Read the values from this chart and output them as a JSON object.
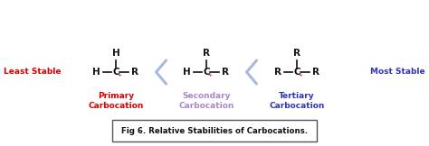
{
  "bg_color": "#ffffff",
  "least_stable_text": "Least Stable",
  "most_stable_text": "Most Stable",
  "least_stable_color": "#dd0000",
  "most_stable_color": "#3333bb",
  "primary_label": "Primary\nCarbocation",
  "secondary_label": "Secondary\nCarbocation",
  "tertiary_label": "Tertiary\nCarbocation",
  "primary_color": "#dd0000",
  "secondary_color": "#aa88cc",
  "tertiary_color": "#3333bb",
  "caption": "Fig 6. Relative Stabilities of Carbocations.",
  "line_color": "#111111",
  "plus_color": "#cc0000",
  "arrow_color": "#aab8dd",
  "figsize": [
    4.74,
    1.62
  ],
  "dpi": 100,
  "xlim": [
    0,
    474
  ],
  "ylim": [
    0,
    162
  ]
}
